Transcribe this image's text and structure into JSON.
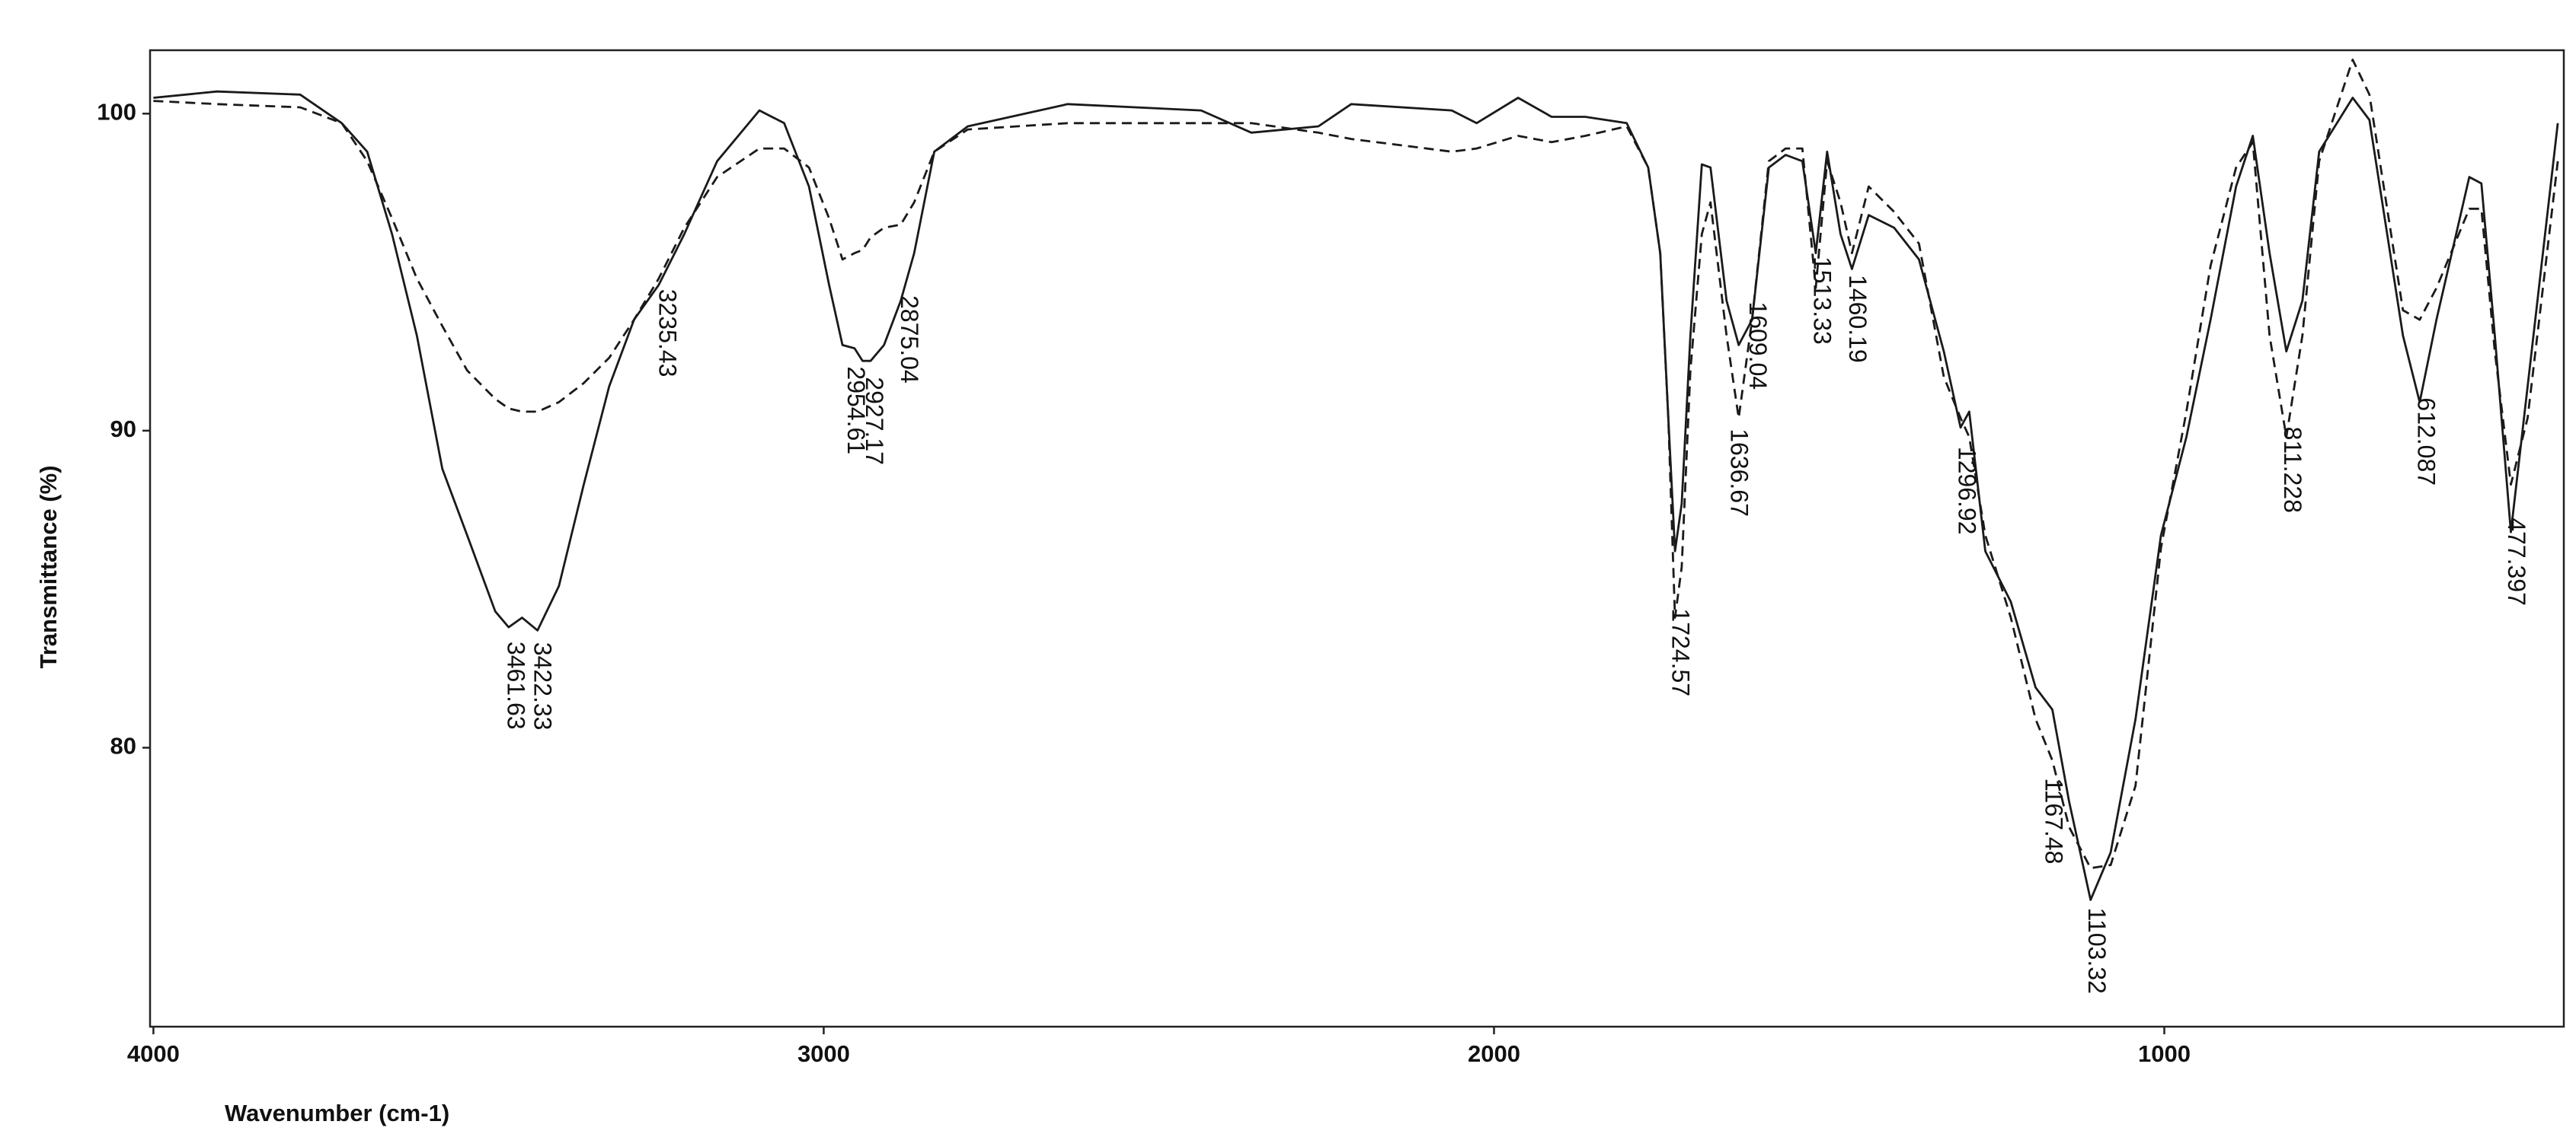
{
  "chart_data": {
    "type": "line",
    "x_label": "Wavenumber (cm-1)",
    "y_label": "Transmittance (%)",
    "xlim": [
      4005,
      404
    ],
    "xticks": [
      4000,
      3000,
      2000,
      1000
    ],
    "ylim": [
      71.2,
      102
    ],
    "yticks": [
      80,
      90,
      100
    ],
    "grid": false,
    "x": [
      4000,
      3905,
      3781,
      3719,
      3681,
      3644,
      3607,
      3569,
      3532,
      3490,
      3470,
      3450,
      3427,
      3395,
      3358,
      3320,
      3283,
      3246,
      3208,
      3159,
      3096,
      3059,
      3022,
      2992,
      2972,
      2954,
      2942,
      2930,
      2910,
      2885,
      2865,
      2835,
      2785,
      2636,
      2437,
      2362,
      2262,
      2213,
      2063,
      2026,
      1964,
      1914,
      1864,
      1802,
      1770,
      1752,
      1740,
      1730,
      1720,
      1707,
      1690,
      1677,
      1653,
      1635,
      1615,
      1590,
      1565,
      1540,
      1520,
      1503,
      1483,
      1466,
      1441,
      1403,
      1366,
      1329,
      1304,
      1291,
      1267,
      1229,
      1192,
      1167,
      1142,
      1110,
      1080,
      1043,
      1005,
      967,
      931,
      893,
      868,
      843,
      818,
      794,
      769,
      719,
      694,
      644,
      619,
      594,
      545,
      527,
      507,
      483,
      458,
      413
    ],
    "series": [
      {
        "color": "#1a1a1a",
        "line_style": "solid",
        "values": [
          100.5,
          100.7,
          100.6,
          99.7,
          98.8,
          96.2,
          93.0,
          88.8,
          86.7,
          84.3,
          83.8,
          84.1,
          83.7,
          85.1,
          88.3,
          91.4,
          93.5,
          94.6,
          96.2,
          98.5,
          100.1,
          99.7,
          97.7,
          94.6,
          92.7,
          92.6,
          92.2,
          92.2,
          92.7,
          94.1,
          95.6,
          98.8,
          99.6,
          100.3,
          100.1,
          99.4,
          99.6,
          100.3,
          100.1,
          99.7,
          100.5,
          99.9,
          99.9,
          99.7,
          98.3,
          95.6,
          90.4,
          86.2,
          87.7,
          93.0,
          98.4,
          98.3,
          94.1,
          92.7,
          93.5,
          98.3,
          98.7,
          98.5,
          95.6,
          98.8,
          96.2,
          95.1,
          96.8,
          96.4,
          95.4,
          92.5,
          90.1,
          90.6,
          86.2,
          84.6,
          81.9,
          81.2,
          78.3,
          75.2,
          76.7,
          80.9,
          86.7,
          89.8,
          93.5,
          97.7,
          99.3,
          95.6,
          92.5,
          94.1,
          98.8,
          100.5,
          99.8,
          93.0,
          90.9,
          93.5,
          98.0,
          97.8,
          93.0,
          86.8,
          91.4,
          99.7
        ]
      },
      {
        "color": "#1a1a1a",
        "line_style": "dashed",
        "values": [
          100.4,
          100.3,
          100.2,
          99.7,
          98.5,
          96.7,
          94.8,
          93.3,
          91.9,
          91.0,
          90.7,
          90.6,
          90.6,
          90.9,
          91.5,
          92.3,
          93.5,
          94.8,
          96.4,
          98.0,
          98.9,
          98.9,
          98.3,
          96.7,
          95.4,
          95.6,
          95.7,
          96.1,
          96.4,
          96.5,
          97.2,
          98.8,
          99.5,
          99.7,
          99.7,
          99.7,
          99.4,
          99.2,
          98.8,
          98.9,
          99.3,
          99.1,
          99.3,
          99.6,
          98.3,
          95.6,
          90.4,
          84.1,
          85.7,
          91.9,
          96.2,
          97.2,
          93.0,
          90.4,
          93.5,
          98.5,
          98.9,
          98.9,
          94.5,
          98.5,
          97.2,
          95.6,
          97.7,
          96.9,
          95.9,
          91.7,
          90.4,
          89.8,
          86.7,
          84.1,
          80.9,
          79.6,
          77.5,
          76.2,
          76.3,
          78.8,
          86.3,
          90.6,
          95.2,
          98.3,
          99.1,
          93.0,
          89.8,
          93.0,
          98.5,
          101.7,
          100.6,
          93.8,
          93.5,
          94.5,
          97.0,
          97.0,
          92.5,
          88.3,
          90.4,
          98.5
        ]
      }
    ],
    "peaks": [
      3461.63,
      3422.33,
      3235.43,
      2954.61,
      2927.17,
      2875.04,
      1724.57,
      1636.67,
      1609.04,
      1513.33,
      1460.19,
      1296.92,
      1167.48,
      1103.32,
      811.228,
      612.087,
      477.397
    ]
  }
}
